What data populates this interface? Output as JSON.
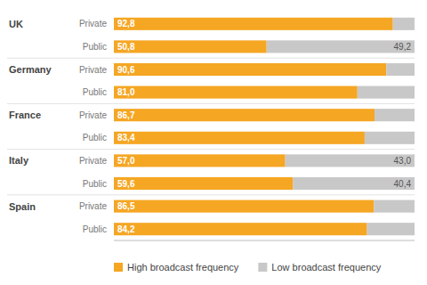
{
  "chart_data": {
    "type": "bar",
    "orientation": "horizontal",
    "stacked": true,
    "categories": [
      "Private",
      "Public",
      "Private",
      "Public",
      "Private",
      "Public",
      "Private",
      "Public",
      "Private",
      "Public"
    ],
    "category_groups": [
      "UK",
      null,
      "Germany",
      null,
      "France",
      null,
      "Italy",
      null,
      "Spain",
      null
    ],
    "series": [
      {
        "name": "High broadcast frequency",
        "color": "#F5A623",
        "values": [
          92.8,
          50.8,
          90.6,
          81.0,
          86.7,
          83.4,
          57.0,
          59.6,
          86.5,
          84.2
        ],
        "value_labels": [
          "92,8",
          "50,8",
          "90,6",
          "81,0",
          "86,7",
          "83,4",
          "57,0",
          "59,6",
          "86,5",
          "84,2"
        ]
      },
      {
        "name": "Low broadcast frequency",
        "color": "#C8C8C8",
        "values": [
          7.2,
          49.2,
          9.4,
          19.0,
          13.3,
          16.6,
          43.0,
          40.4,
          13.5,
          15.8
        ],
        "value_labels": [
          null,
          "49,2",
          null,
          null,
          null,
          null,
          "43,0",
          "40,4",
          null,
          null
        ]
      }
    ],
    "xlim": [
      0,
      100
    ],
    "tick_labels": "y",
    "data_labels": true,
    "legend": "bottom",
    "grid": false
  }
}
